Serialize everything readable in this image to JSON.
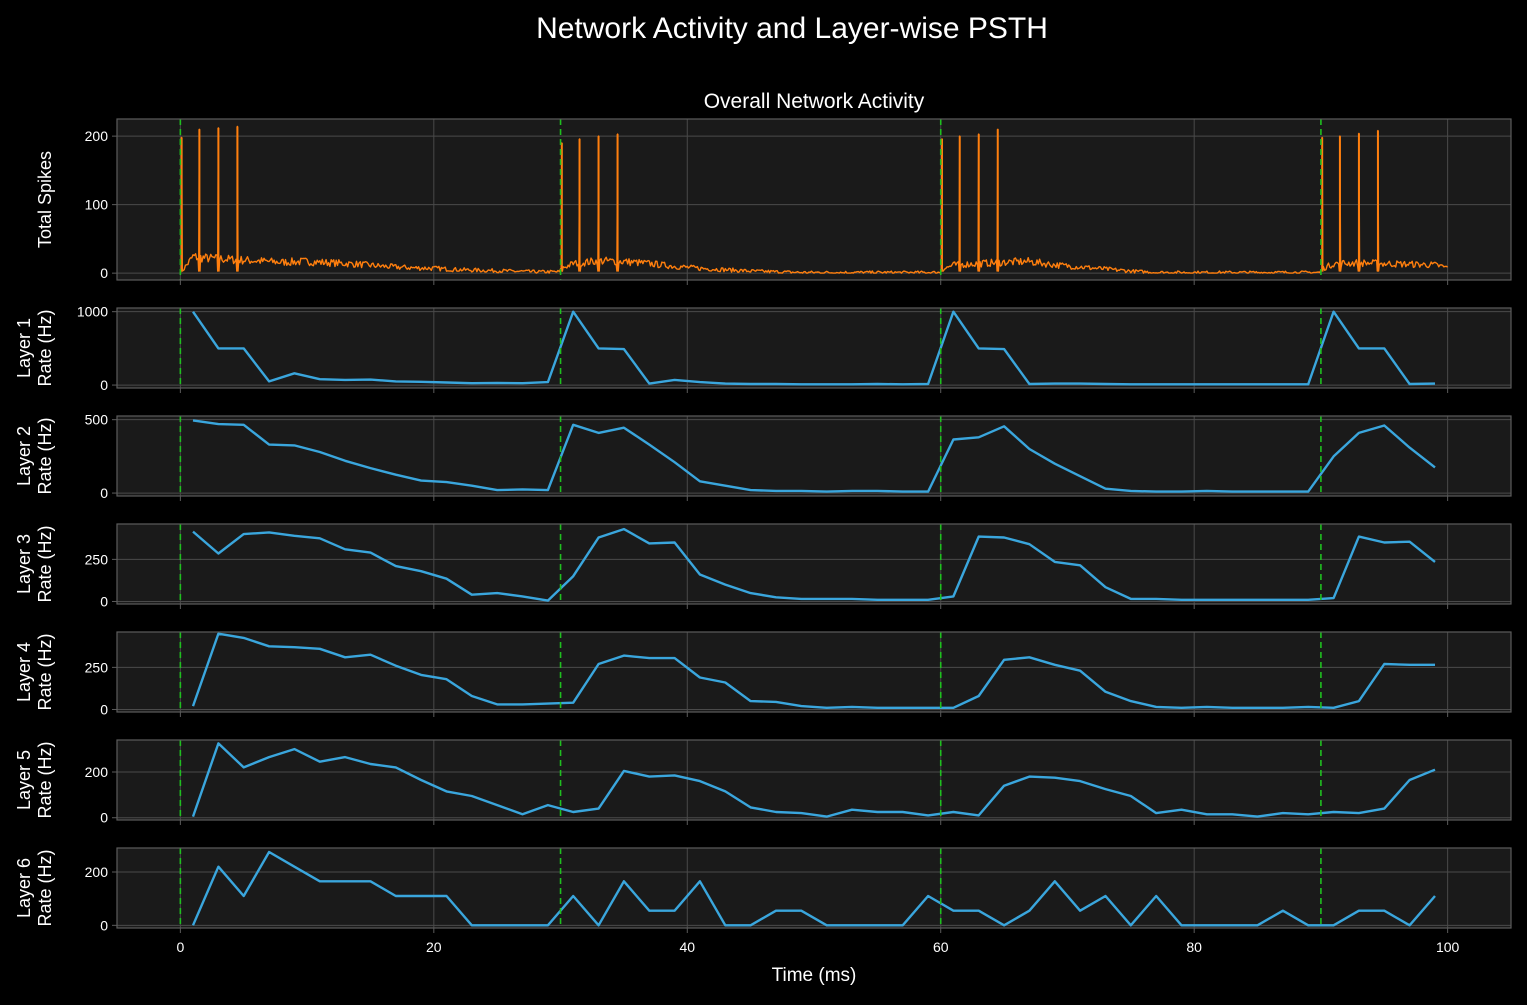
{
  "figure": {
    "title": "Network Activity and Layer-wise PSTH",
    "background": "#000000",
    "axes_face": "#1a1a1a",
    "grid_color": "#4a4a4a",
    "spine_color": "#5c5c5c",
    "text_color": "#ffffff",
    "stimulus_color": "#1fbf1f",
    "overall_color": "#ff7f0e",
    "psth_color": "#3aa6dd"
  },
  "chart_data": [
    {
      "type": "line",
      "title": "Overall Network Activity",
      "xlabel": "",
      "ylabel": "Total Spikes",
      "xlim": [
        -5,
        105
      ],
      "ylim": [
        -10,
        225
      ],
      "yticks": [
        0,
        100,
        200
      ],
      "xticks": [
        0,
        20,
        40,
        60,
        80,
        100
      ],
      "grid": true,
      "stimulus_times": [
        0,
        30,
        60,
        90
      ],
      "spikes": [
        {
          "t": 0.1,
          "v": 198
        },
        {
          "t": 1.5,
          "v": 210
        },
        {
          "t": 3.0,
          "v": 212
        },
        {
          "t": 4.5,
          "v": 214
        },
        {
          "t": 30.1,
          "v": 190
        },
        {
          "t": 31.5,
          "v": 196
        },
        {
          "t": 33.0,
          "v": 200
        },
        {
          "t": 34.5,
          "v": 203
        },
        {
          "t": 60.1,
          "v": 196
        },
        {
          "t": 61.5,
          "v": 200
        },
        {
          "t": 63.0,
          "v": 203
        },
        {
          "t": 64.5,
          "v": 210
        },
        {
          "t": 90.1,
          "v": 198
        },
        {
          "t": 91.5,
          "v": 200
        },
        {
          "t": 93.0,
          "v": 204
        },
        {
          "t": 94.5,
          "v": 208
        }
      ],
      "baseline": {
        "x": [
          0,
          1,
          2,
          4,
          6,
          8,
          10,
          12,
          14,
          16,
          18,
          20,
          22,
          24,
          26,
          28,
          29.9,
          30.2,
          31,
          33,
          35,
          37,
          39,
          41,
          43,
          45,
          47,
          49,
          51,
          53,
          55,
          57,
          59.9,
          60.2,
          61,
          63,
          65,
          67,
          69,
          71,
          73,
          75,
          77,
          79,
          81,
          83,
          85,
          87,
          89.9,
          90.2,
          91,
          93,
          95,
          97,
          99,
          100
        ],
        "y": [
          0,
          24,
          22,
          20,
          18,
          16,
          17,
          15,
          13,
          10,
          8,
          7,
          5,
          4,
          3,
          2,
          2,
          8,
          14,
          18,
          17,
          14,
          10,
          7,
          5,
          3,
          2,
          1,
          1,
          1,
          1,
          1,
          1,
          6,
          12,
          14,
          16,
          17,
          12,
          9,
          6,
          3,
          1,
          1,
          1,
          1,
          1,
          1,
          1,
          7,
          14,
          15,
          14,
          13,
          12,
          8
        ]
      }
    },
    {
      "type": "line",
      "ylabel": [
        "Layer 1",
        "Rate (Hz)"
      ],
      "ylim": [
        -40,
        1050
      ],
      "yticks": [
        0,
        1000
      ],
      "x": [
        1,
        3,
        5,
        7,
        9,
        11,
        13,
        15,
        17,
        19,
        21,
        23,
        25,
        27,
        29,
        31,
        33,
        35,
        37,
        39,
        41,
        43,
        45,
        47,
        49,
        51,
        53,
        55,
        57,
        59,
        61,
        63,
        65,
        67,
        69,
        71,
        73,
        75,
        77,
        79,
        81,
        83,
        85,
        87,
        89,
        91,
        93,
        95,
        97,
        99
      ],
      "values": [
        1000,
        500,
        500,
        50,
        160,
        80,
        70,
        75,
        50,
        45,
        35,
        25,
        30,
        25,
        40,
        1000,
        500,
        490,
        20,
        70,
        40,
        20,
        15,
        15,
        10,
        10,
        10,
        15,
        10,
        15,
        1000,
        500,
        490,
        15,
        20,
        20,
        15,
        10,
        10,
        10,
        10,
        10,
        10,
        10,
        10,
        1000,
        500,
        500,
        15,
        20
      ]
    },
    {
      "type": "line",
      "ylabel": [
        "Layer 2",
        "Rate (Hz)"
      ],
      "ylim": [
        -20,
        525
      ],
      "yticks": [
        0,
        500
      ],
      "x": [
        1,
        3,
        5,
        7,
        9,
        11,
        13,
        15,
        17,
        19,
        21,
        23,
        25,
        27,
        29,
        31,
        33,
        35,
        37,
        39,
        41,
        43,
        45,
        47,
        49,
        51,
        53,
        55,
        57,
        59,
        61,
        63,
        65,
        67,
        69,
        71,
        73,
        75,
        77,
        79,
        81,
        83,
        85,
        87,
        89,
        91,
        93,
        95,
        97,
        99
      ],
      "values": [
        495,
        470,
        465,
        330,
        325,
        280,
        220,
        170,
        125,
        85,
        75,
        50,
        20,
        25,
        20,
        465,
        410,
        445,
        330,
        210,
        80,
        50,
        20,
        15,
        15,
        10,
        15,
        15,
        10,
        10,
        365,
        380,
        455,
        300,
        200,
        115,
        30,
        15,
        10,
        10,
        15,
        10,
        10,
        10,
        10,
        250,
        410,
        460,
        310,
        175
      ]
    },
    {
      "type": "line",
      "ylabel": [
        "Layer 3",
        "Rate (Hz)"
      ],
      "ylim": [
        -15,
        460
      ],
      "yticks": [
        0,
        250
      ],
      "x": [
        1,
        3,
        5,
        7,
        9,
        11,
        13,
        15,
        17,
        19,
        21,
        23,
        25,
        27,
        29,
        31,
        33,
        35,
        37,
        39,
        41,
        43,
        45,
        47,
        49,
        51,
        53,
        55,
        57,
        59,
        61,
        63,
        65,
        67,
        69,
        71,
        73,
        75,
        77,
        79,
        81,
        83,
        85,
        87,
        89,
        91,
        93,
        95,
        97,
        99
      ],
      "values": [
        415,
        285,
        400,
        410,
        390,
        375,
        310,
        290,
        210,
        180,
        135,
        40,
        50,
        30,
        5,
        150,
        380,
        430,
        345,
        350,
        160,
        100,
        50,
        25,
        15,
        15,
        15,
        10,
        10,
        10,
        30,
        385,
        380,
        340,
        235,
        215,
        85,
        15,
        15,
        10,
        10,
        10,
        10,
        10,
        10,
        20,
        385,
        350,
        355,
        235
      ]
    },
    {
      "type": "line",
      "ylabel": [
        "Layer 4",
        "Rate (Hz)"
      ],
      "ylim": [
        -15,
        460
      ],
      "yticks": [
        0,
        250
      ],
      "x": [
        1,
        3,
        5,
        7,
        9,
        11,
        13,
        15,
        17,
        19,
        21,
        23,
        25,
        27,
        29,
        31,
        33,
        35,
        37,
        39,
        41,
        43,
        45,
        47,
        49,
        51,
        53,
        55,
        57,
        59,
        61,
        63,
        65,
        67,
        69,
        71,
        73,
        75,
        77,
        79,
        81,
        83,
        85,
        87,
        89,
        91,
        93,
        95,
        97,
        99
      ],
      "values": [
        20,
        450,
        425,
        375,
        370,
        360,
        310,
        325,
        260,
        205,
        180,
        80,
        30,
        30,
        35,
        40,
        270,
        320,
        305,
        305,
        190,
        160,
        50,
        45,
        20,
        10,
        15,
        10,
        10,
        10,
        10,
        80,
        295,
        310,
        265,
        230,
        105,
        50,
        15,
        10,
        15,
        10,
        10,
        10,
        15,
        10,
        50,
        270,
        265,
        265
      ]
    },
    {
      "type": "line",
      "ylabel": [
        "Layer 5",
        "Rate (Hz)"
      ],
      "ylim": [
        -10,
        340
      ],
      "yticks": [
        0,
        200
      ],
      "x": [
        1,
        3,
        5,
        7,
        9,
        11,
        13,
        15,
        17,
        19,
        21,
        23,
        25,
        27,
        29,
        31,
        33,
        35,
        37,
        39,
        41,
        43,
        45,
        47,
        49,
        51,
        53,
        55,
        57,
        59,
        61,
        63,
        65,
        67,
        69,
        71,
        73,
        75,
        77,
        79,
        81,
        83,
        85,
        87,
        89,
        91,
        93,
        95,
        97,
        99
      ],
      "values": [
        5,
        325,
        220,
        265,
        300,
        245,
        265,
        235,
        220,
        165,
        115,
        95,
        55,
        15,
        55,
        25,
        40,
        205,
        180,
        185,
        160,
        115,
        45,
        25,
        20,
        5,
        35,
        25,
        25,
        10,
        25,
        10,
        140,
        180,
        175,
        160,
        125,
        95,
        20,
        35,
        15,
        15,
        5,
        20,
        15,
        25,
        20,
        40,
        165,
        210
      ]
    },
    {
      "type": "line",
      "ylabel": [
        "Layer 6",
        "Rate (Hz)"
      ],
      "ylim": [
        -10,
        290
      ],
      "yticks": [
        0,
        200
      ],
      "xlabel": "Time (ms)",
      "xticks": [
        0,
        20,
        40,
        60,
        80,
        100
      ],
      "x": [
        1,
        3,
        5,
        7,
        9,
        11,
        13,
        15,
        17,
        19,
        21,
        23,
        25,
        27,
        29,
        31,
        33,
        35,
        37,
        39,
        41,
        43,
        45,
        47,
        49,
        51,
        53,
        55,
        57,
        59,
        61,
        63,
        65,
        67,
        69,
        71,
        73,
        75,
        77,
        79,
        81,
        83,
        85,
        87,
        89,
        91,
        93,
        95,
        97,
        99
      ],
      "values": [
        0,
        220,
        110,
        275,
        220,
        165,
        165,
        165,
        110,
        110,
        110,
        0,
        0,
        0,
        0,
        110,
        0,
        165,
        55,
        55,
        165,
        0,
        0,
        55,
        55,
        0,
        0,
        0,
        0,
        110,
        55,
        55,
        0,
        55,
        165,
        55,
        110,
        0,
        110,
        0,
        0,
        0,
        0,
        55,
        0,
        0,
        55,
        55,
        0,
        110
      ]
    }
  ]
}
